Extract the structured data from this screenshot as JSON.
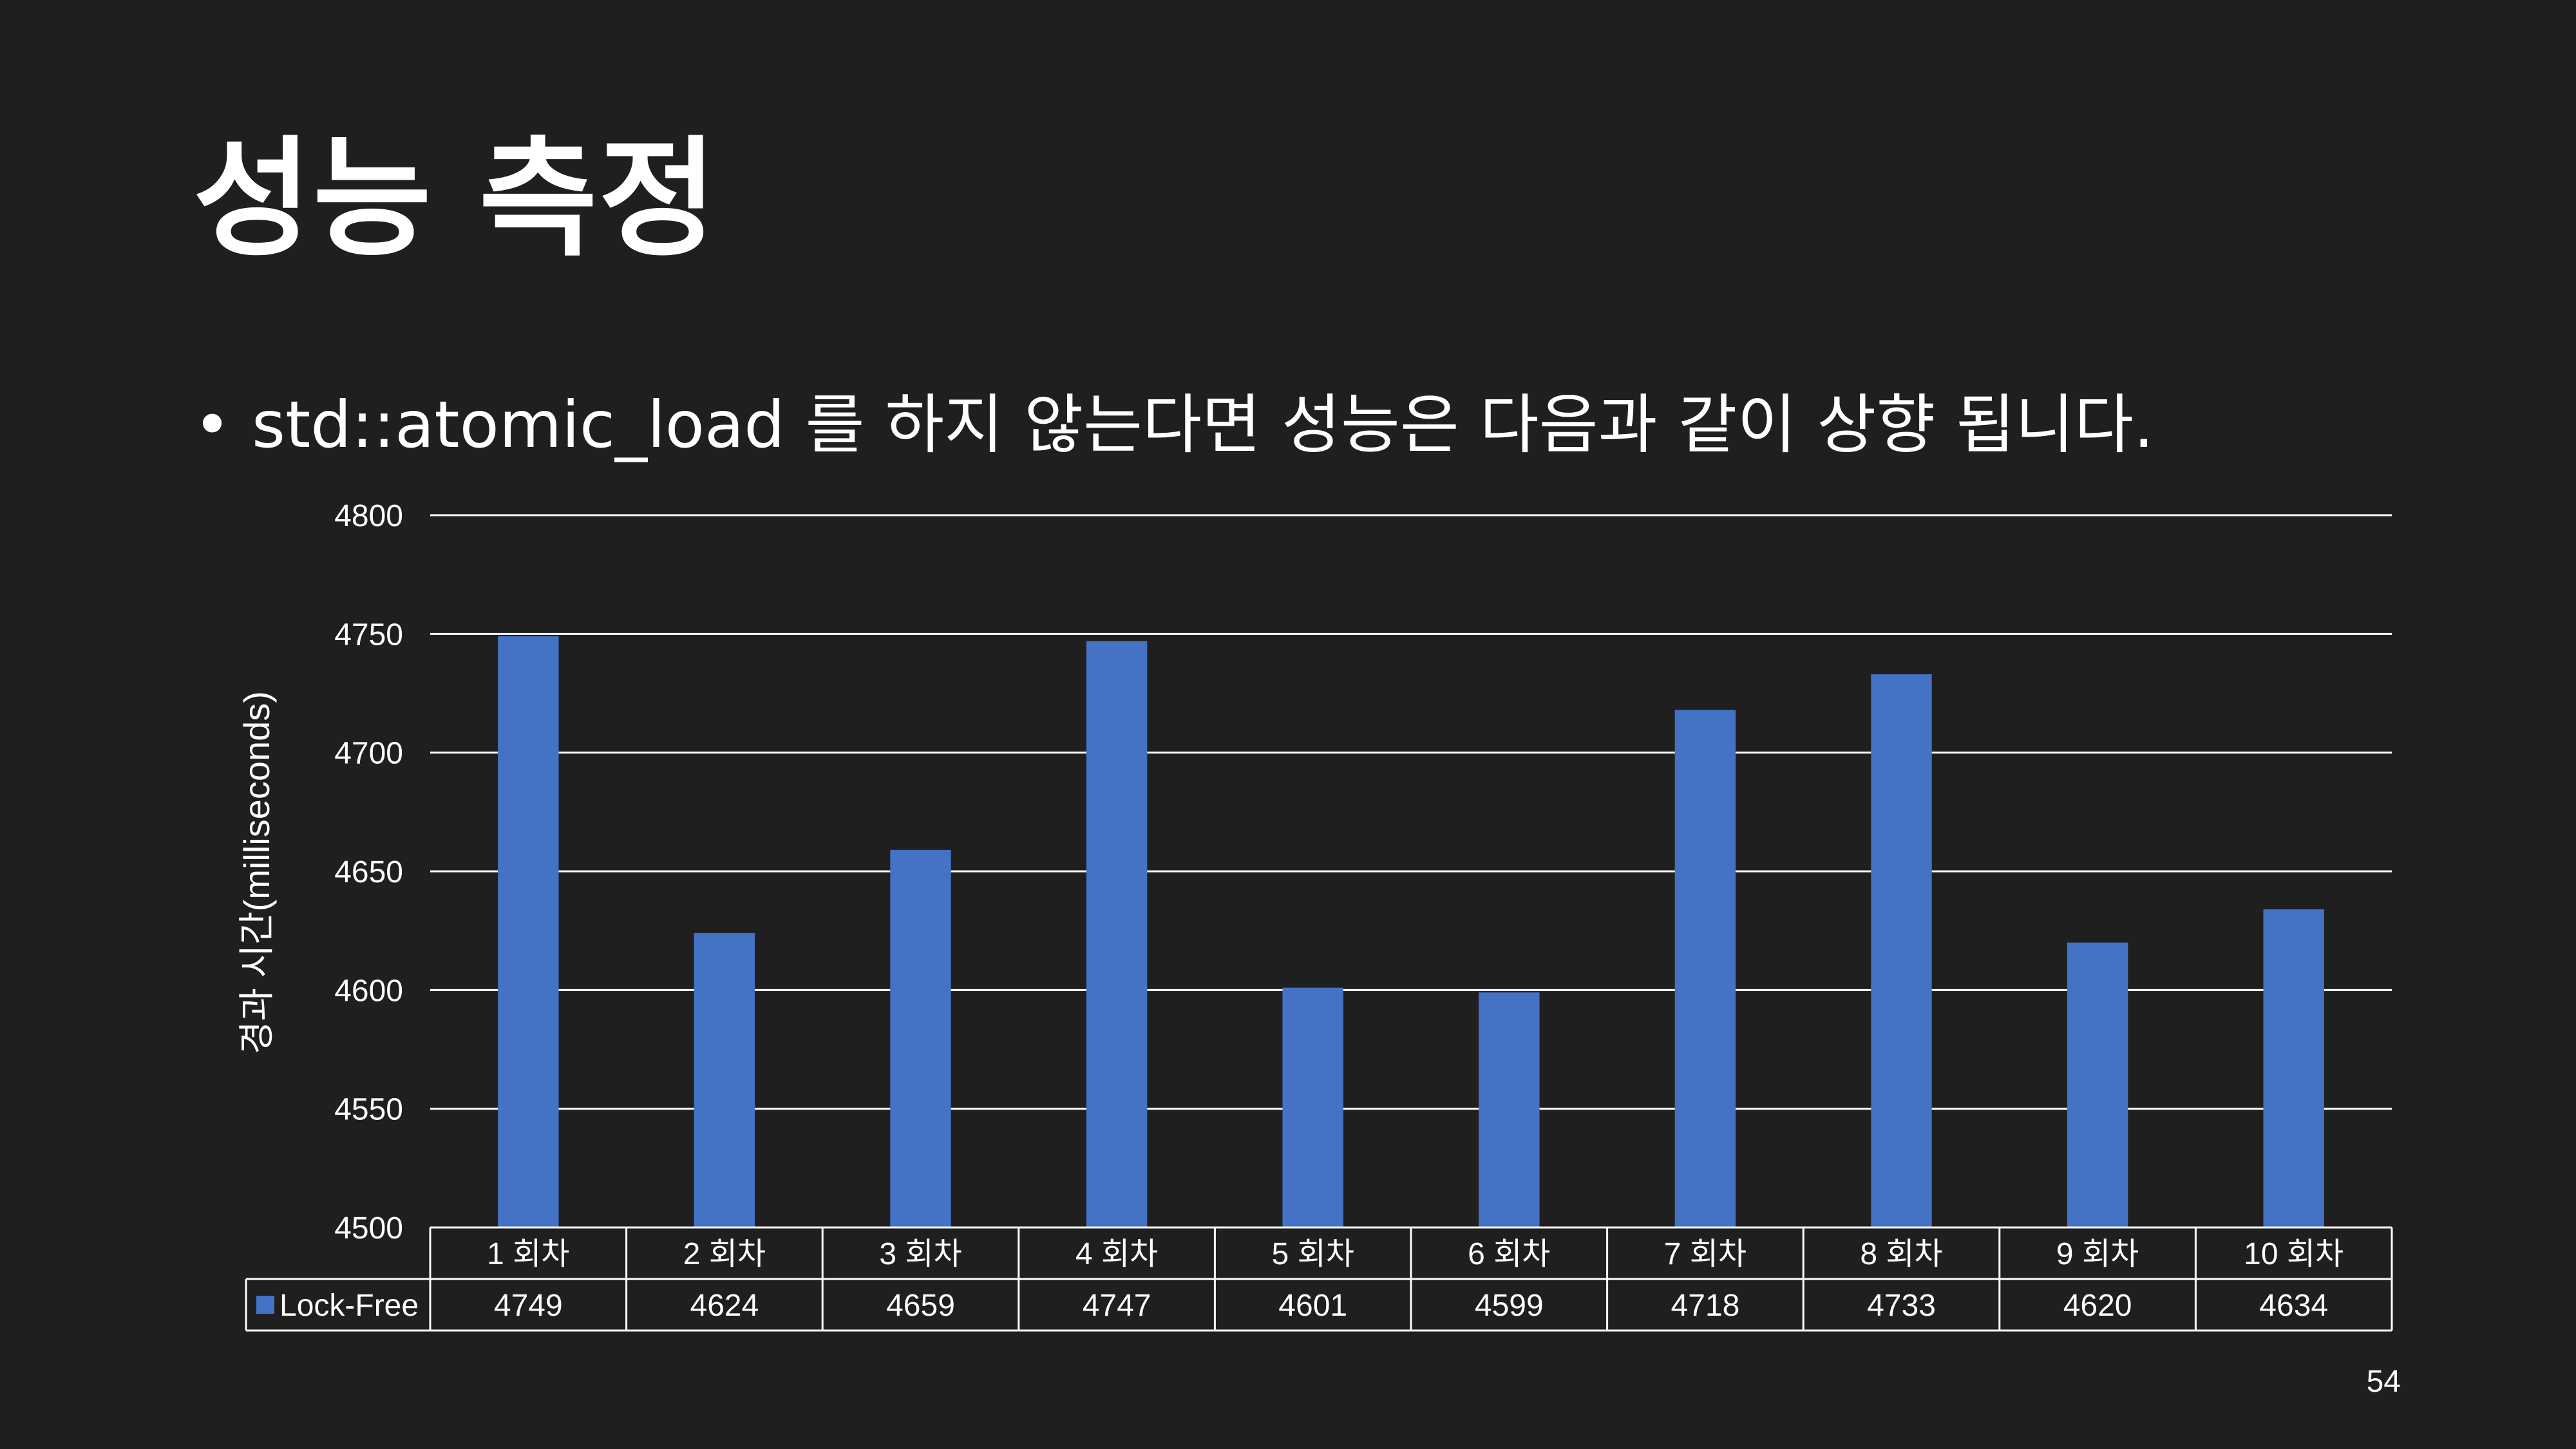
{
  "slide": {
    "title": "성능 측정",
    "bullet_marker": "•",
    "bullet_text": "std::atomic_load 를 하지 않는다면 성능은 다음과 같이 상향 됩니다.",
    "page_number": "54"
  },
  "colors": {
    "background": "#1f1f1f",
    "text": "#ffffff",
    "bar": "#4472c4",
    "gridline": "#ffffff"
  },
  "chart_data": {
    "type": "bar",
    "ylabel": "경과 시간(milliseconds)",
    "ylim": [
      4500,
      4800
    ],
    "yticks": [
      4500,
      4550,
      4600,
      4650,
      4700,
      4750,
      4800
    ],
    "grid": true,
    "legend": "data-table",
    "categories": [
      "1 회차",
      "2 회차",
      "3 회차",
      "4 회차",
      "5 회차",
      "6 회차",
      "7 회차",
      "8 회차",
      "9 회차",
      "10 회차"
    ],
    "series": [
      {
        "name": "Lock-Free",
        "values": [
          4749,
          4624,
          4659,
          4747,
          4601,
          4599,
          4718,
          4733,
          4620,
          4634
        ]
      }
    ]
  }
}
